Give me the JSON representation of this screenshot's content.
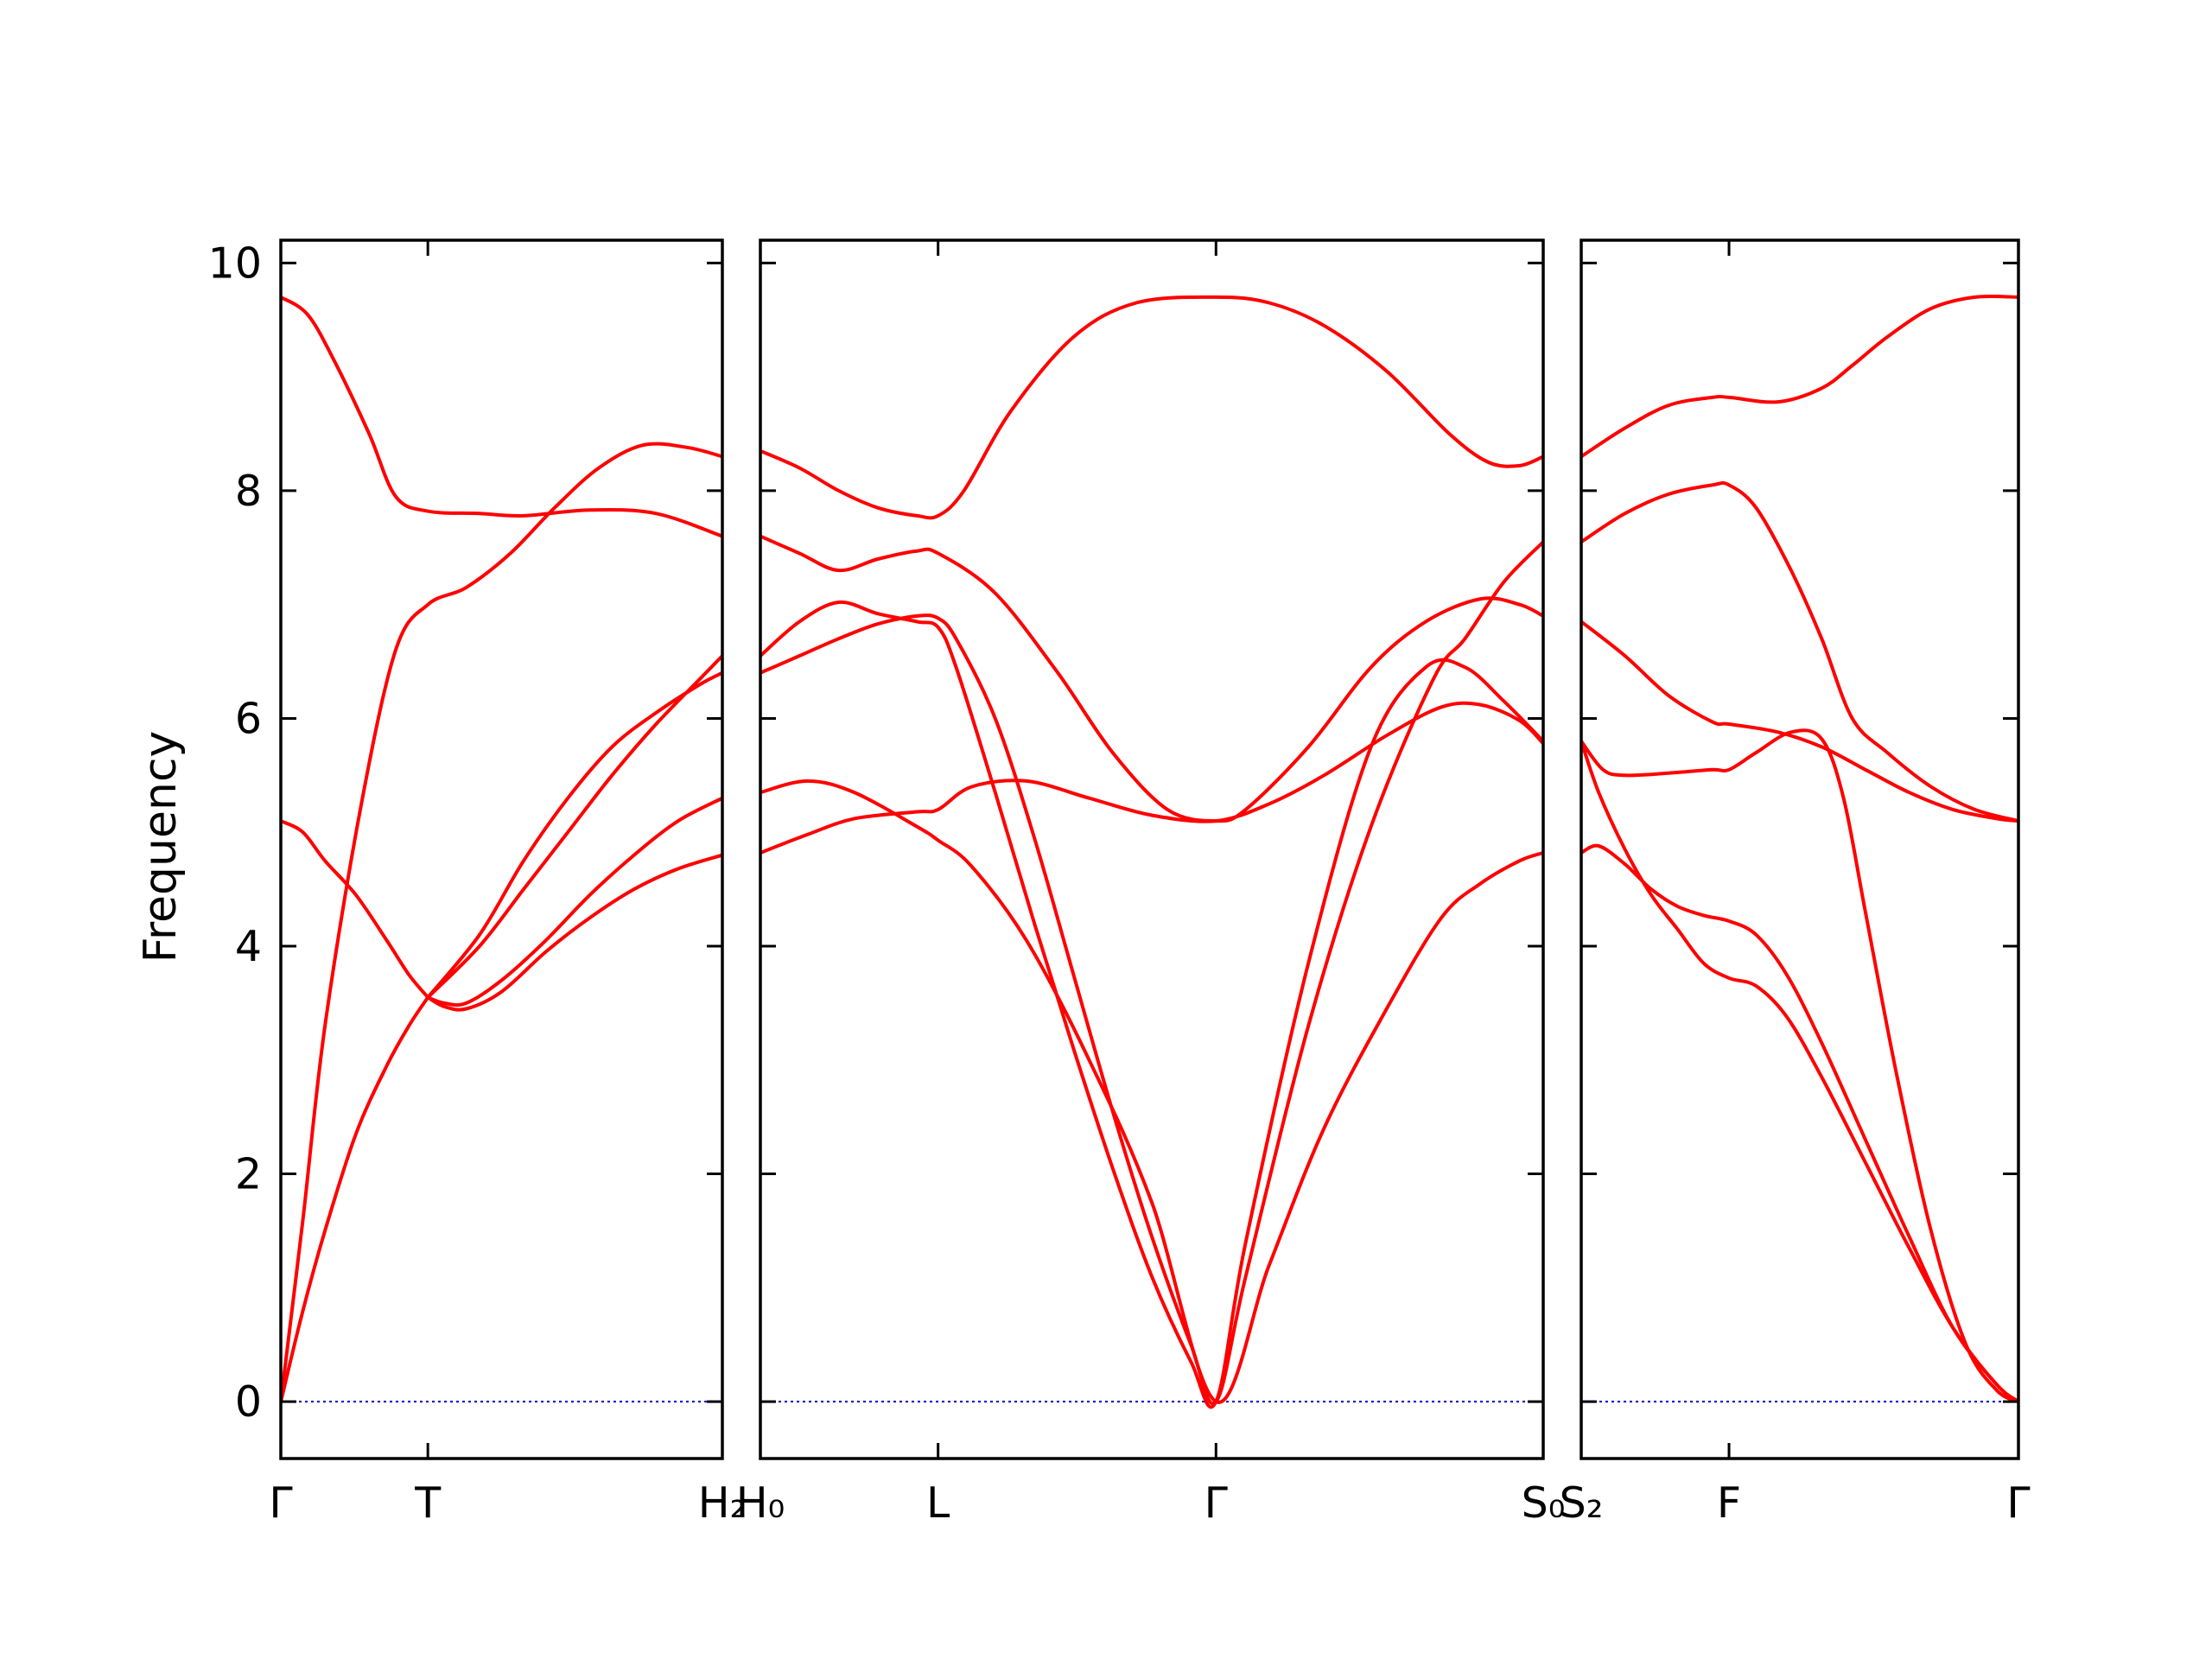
{
  "chart_data": {
    "type": "line",
    "ylabel": "Frequency",
    "ylim": [
      -0.5,
      10.2
    ],
    "yticks": [
      "0",
      "2",
      "4",
      "6",
      "8",
      "10"
    ],
    "line_color": "#ff0000",
    "zero_line_color": "#0000cc",
    "grid": false,
    "panels": [
      {
        "xticks": [
          "Γ",
          "T",
          "H₂"
        ],
        "tick_positions": [
          0,
          0.333,
          1
        ],
        "series": [
          {
            "x": [
              0,
              0.06,
              0.12,
              0.2,
              0.26,
              0.333,
              0.45,
              0.55,
              0.7,
              0.85,
              1.0
            ],
            "y": [
              9.7,
              9.55,
              9.15,
              8.5,
              7.95,
              7.82,
              7.8,
              7.78,
              7.83,
              7.8,
              7.6
            ]
          },
          {
            "x": [
              0,
              0.05,
              0.1,
              0.18,
              0.26,
              0.333,
              0.42,
              0.52,
              0.62,
              0.72,
              0.82,
              0.92,
              1.0
            ],
            "y": [
              0.0,
              1.6,
              3.3,
              5.2,
              6.6,
              7.0,
              7.15,
              7.45,
              7.85,
              8.2,
              8.4,
              8.38,
              8.3
            ]
          },
          {
            "x": [
              0,
              0.05,
              0.1,
              0.17,
              0.24,
              0.29,
              0.333
            ],
            "y": [
              5.1,
              5.0,
              4.75,
              4.45,
              4.05,
              3.75,
              3.55
            ]
          },
          {
            "x": [
              0,
              0.05,
              0.1,
              0.17,
              0.24,
              0.29,
              0.333
            ],
            "y": [
              0.0,
              0.8,
              1.5,
              2.35,
              2.95,
              3.3,
              3.55
            ]
          },
          {
            "x": [
              0.333,
              0.45,
              0.55,
              0.65,
              0.75,
              0.85,
              0.95,
              1.0
            ],
            "y": [
              3.55,
              4.1,
              4.75,
              5.3,
              5.75,
              6.05,
              6.3,
              6.4
            ]
          },
          {
            "x": [
              0.333,
              0.45,
              0.55,
              0.65,
              0.75,
              0.85,
              0.95,
              1.0
            ],
            "y": [
              3.55,
              4.0,
              4.5,
              5.0,
              5.5,
              5.95,
              6.35,
              6.55
            ]
          },
          {
            "x": [
              0.333,
              0.37,
              0.42,
              0.5,
              0.6,
              0.7,
              0.8,
              0.9,
              1.0
            ],
            "y": [
              3.55,
              3.5,
              3.5,
              3.7,
              4.05,
              4.45,
              4.8,
              5.1,
              5.3
            ]
          },
          {
            "x": [
              0.333,
              0.37,
              0.42,
              0.5,
              0.6,
              0.7,
              0.8,
              0.9,
              1.0
            ],
            "y": [
              3.55,
              3.47,
              3.45,
              3.6,
              3.95,
              4.25,
              4.5,
              4.68,
              4.8
            ]
          }
        ]
      },
      {
        "xticks": [
          "H₀",
          "L",
          "Γ",
          "S₀"
        ],
        "tick_positions": [
          0,
          0.227,
          0.582,
          1
        ],
        "series": [
          {
            "x": [
              0,
              0.05,
              0.1,
              0.15,
              0.2,
              0.227,
              0.26,
              0.32,
              0.4,
              0.48,
              0.582,
              0.65,
              0.72,
              0.8,
              0.88,
              0.93,
              0.97,
              1.0
            ],
            "y": [
              8.35,
              8.2,
              8.0,
              7.85,
              7.78,
              7.78,
              8.0,
              8.7,
              9.35,
              9.65,
              9.7,
              9.65,
              9.45,
              9.05,
              8.5,
              8.25,
              8.22,
              8.3
            ]
          },
          {
            "x": [
              0,
              0.05,
              0.1,
              0.15,
              0.2,
              0.227,
              0.3,
              0.38,
              0.45,
              0.52,
              0.582,
              0.62,
              0.7,
              0.78,
              0.85,
              0.92,
              0.97,
              1.0
            ],
            "y": [
              7.6,
              7.45,
              7.3,
              7.4,
              7.47,
              7.45,
              7.1,
              6.4,
              5.7,
              5.2,
              5.1,
              5.2,
              5.75,
              6.45,
              6.85,
              7.05,
              7.0,
              6.9
            ]
          },
          {
            "x": [
              0,
              0.05,
              0.1,
              0.15,
              0.2,
              0.227,
              0.25,
              0.3,
              0.35,
              0.4,
              0.45,
              0.5,
              0.55,
              0.582,
              0.62,
              0.7,
              0.78,
              0.86,
              0.9,
              0.95,
              1.0
            ],
            "y": [
              6.4,
              6.55,
              6.7,
              6.83,
              6.9,
              6.88,
              6.7,
              6.0,
              4.95,
              3.75,
              2.55,
              1.45,
              0.5,
              0.0,
              1.1,
              3.3,
              5.05,
              6.35,
              6.7,
              7.2,
              7.55
            ]
          },
          {
            "x": [
              0,
              0.05,
              0.1,
              0.15,
              0.2,
              0.227,
              0.25,
              0.3,
              0.35,
              0.4,
              0.45,
              0.5,
              0.55,
              0.582,
              0.62,
              0.7,
              0.78,
              0.85,
              0.9,
              0.95,
              1.0
            ],
            "y": [
              6.55,
              6.85,
              7.02,
              6.92,
              6.85,
              6.8,
              6.45,
              5.35,
              4.2,
              3.1,
              2.05,
              1.1,
              0.35,
              0.0,
              1.4,
              3.85,
              5.75,
              6.45,
              6.45,
              6.15,
              5.8
            ]
          },
          {
            "x": [
              0,
              0.06,
              0.12,
              0.2,
              0.227,
              0.27,
              0.34,
              0.42,
              0.5,
              0.582,
              0.65,
              0.72,
              0.8,
              0.87,
              0.92,
              0.97,
              1.0
            ],
            "y": [
              5.35,
              5.45,
              5.35,
              5.05,
              4.93,
              4.7,
              4.05,
              3.0,
              1.75,
              0.0,
              1.2,
              2.4,
              3.45,
              4.25,
              4.55,
              4.75,
              4.82
            ]
          },
          {
            "x": [
              0,
              0.06,
              0.12,
              0.2,
              0.227,
              0.27,
              0.34,
              0.42,
              0.5,
              0.582,
              0.65,
              0.72,
              0.8,
              0.87,
              0.92,
              0.97,
              1.0
            ],
            "y": [
              4.82,
              4.98,
              5.12,
              5.18,
              5.2,
              5.4,
              5.45,
              5.3,
              5.15,
              5.1,
              5.25,
              5.5,
              5.85,
              6.1,
              6.12,
              5.98,
              5.78
            ]
          }
        ]
      },
      {
        "xticks": [
          "S₂",
          "F",
          "Γ"
        ],
        "tick_positions": [
          0,
          0.338,
          1
        ],
        "series": [
          {
            "x": [
              0,
              0.1,
              0.2,
              0.3,
              0.338,
              0.45,
              0.55,
              0.62,
              0.7,
              0.8,
              0.9,
              1.0
            ],
            "y": [
              8.3,
              8.55,
              8.75,
              8.82,
              8.82,
              8.78,
              8.9,
              9.1,
              9.35,
              9.6,
              9.7,
              9.7
            ]
          },
          {
            "x": [
              0,
              0.1,
              0.2,
              0.3,
              0.338,
              0.4,
              0.48,
              0.55,
              0.62,
              0.7,
              0.8,
              0.9,
              1.0
            ],
            "y": [
              7.55,
              7.8,
              7.97,
              8.05,
              8.05,
              7.85,
              7.3,
              6.7,
              6.0,
              5.7,
              5.4,
              5.2,
              5.1
            ]
          },
          {
            "x": [
              0,
              0.1,
              0.2,
              0.3,
              0.338,
              0.45,
              0.55,
              0.65,
              0.75,
              0.85,
              0.95,
              1.0
            ],
            "y": [
              6.85,
              6.55,
              6.2,
              5.97,
              5.95,
              5.88,
              5.75,
              5.55,
              5.35,
              5.2,
              5.12,
              5.1
            ]
          },
          {
            "x": [
              0,
              0.05,
              0.1,
              0.2,
              0.3,
              0.338,
              0.4,
              0.48,
              0.55,
              0.6,
              0.65,
              0.72,
              0.8,
              0.88,
              0.95,
              1.0
            ],
            "y": [
              5.8,
              5.55,
              5.5,
              5.52,
              5.55,
              5.55,
              5.7,
              5.88,
              5.82,
              5.3,
              4.3,
              2.9,
              1.5,
              0.5,
              0.1,
              0.0
            ]
          },
          {
            "x": [
              0,
              0.04,
              0.1,
              0.16,
              0.22,
              0.28,
              0.338,
              0.4,
              0.47,
              0.55,
              0.65,
              0.75,
              0.85,
              0.95,
              1.0
            ],
            "y": [
              5.8,
              5.35,
              4.85,
              4.45,
              4.15,
              3.85,
              3.72,
              3.65,
              3.38,
              2.85,
              2.1,
              1.35,
              0.65,
              0.15,
              0.0
            ]
          },
          {
            "x": [
              0,
              0.04,
              0.1,
              0.16,
              0.22,
              0.28,
              0.338,
              0.4,
              0.47,
              0.55,
              0.65,
              0.75,
              0.85,
              0.95,
              1.0
            ],
            "y": [
              4.82,
              4.88,
              4.72,
              4.5,
              4.35,
              4.27,
              4.22,
              4.1,
              3.75,
              3.15,
              2.3,
              1.45,
              0.65,
              0.15,
              0.0
            ]
          }
        ]
      }
    ]
  }
}
